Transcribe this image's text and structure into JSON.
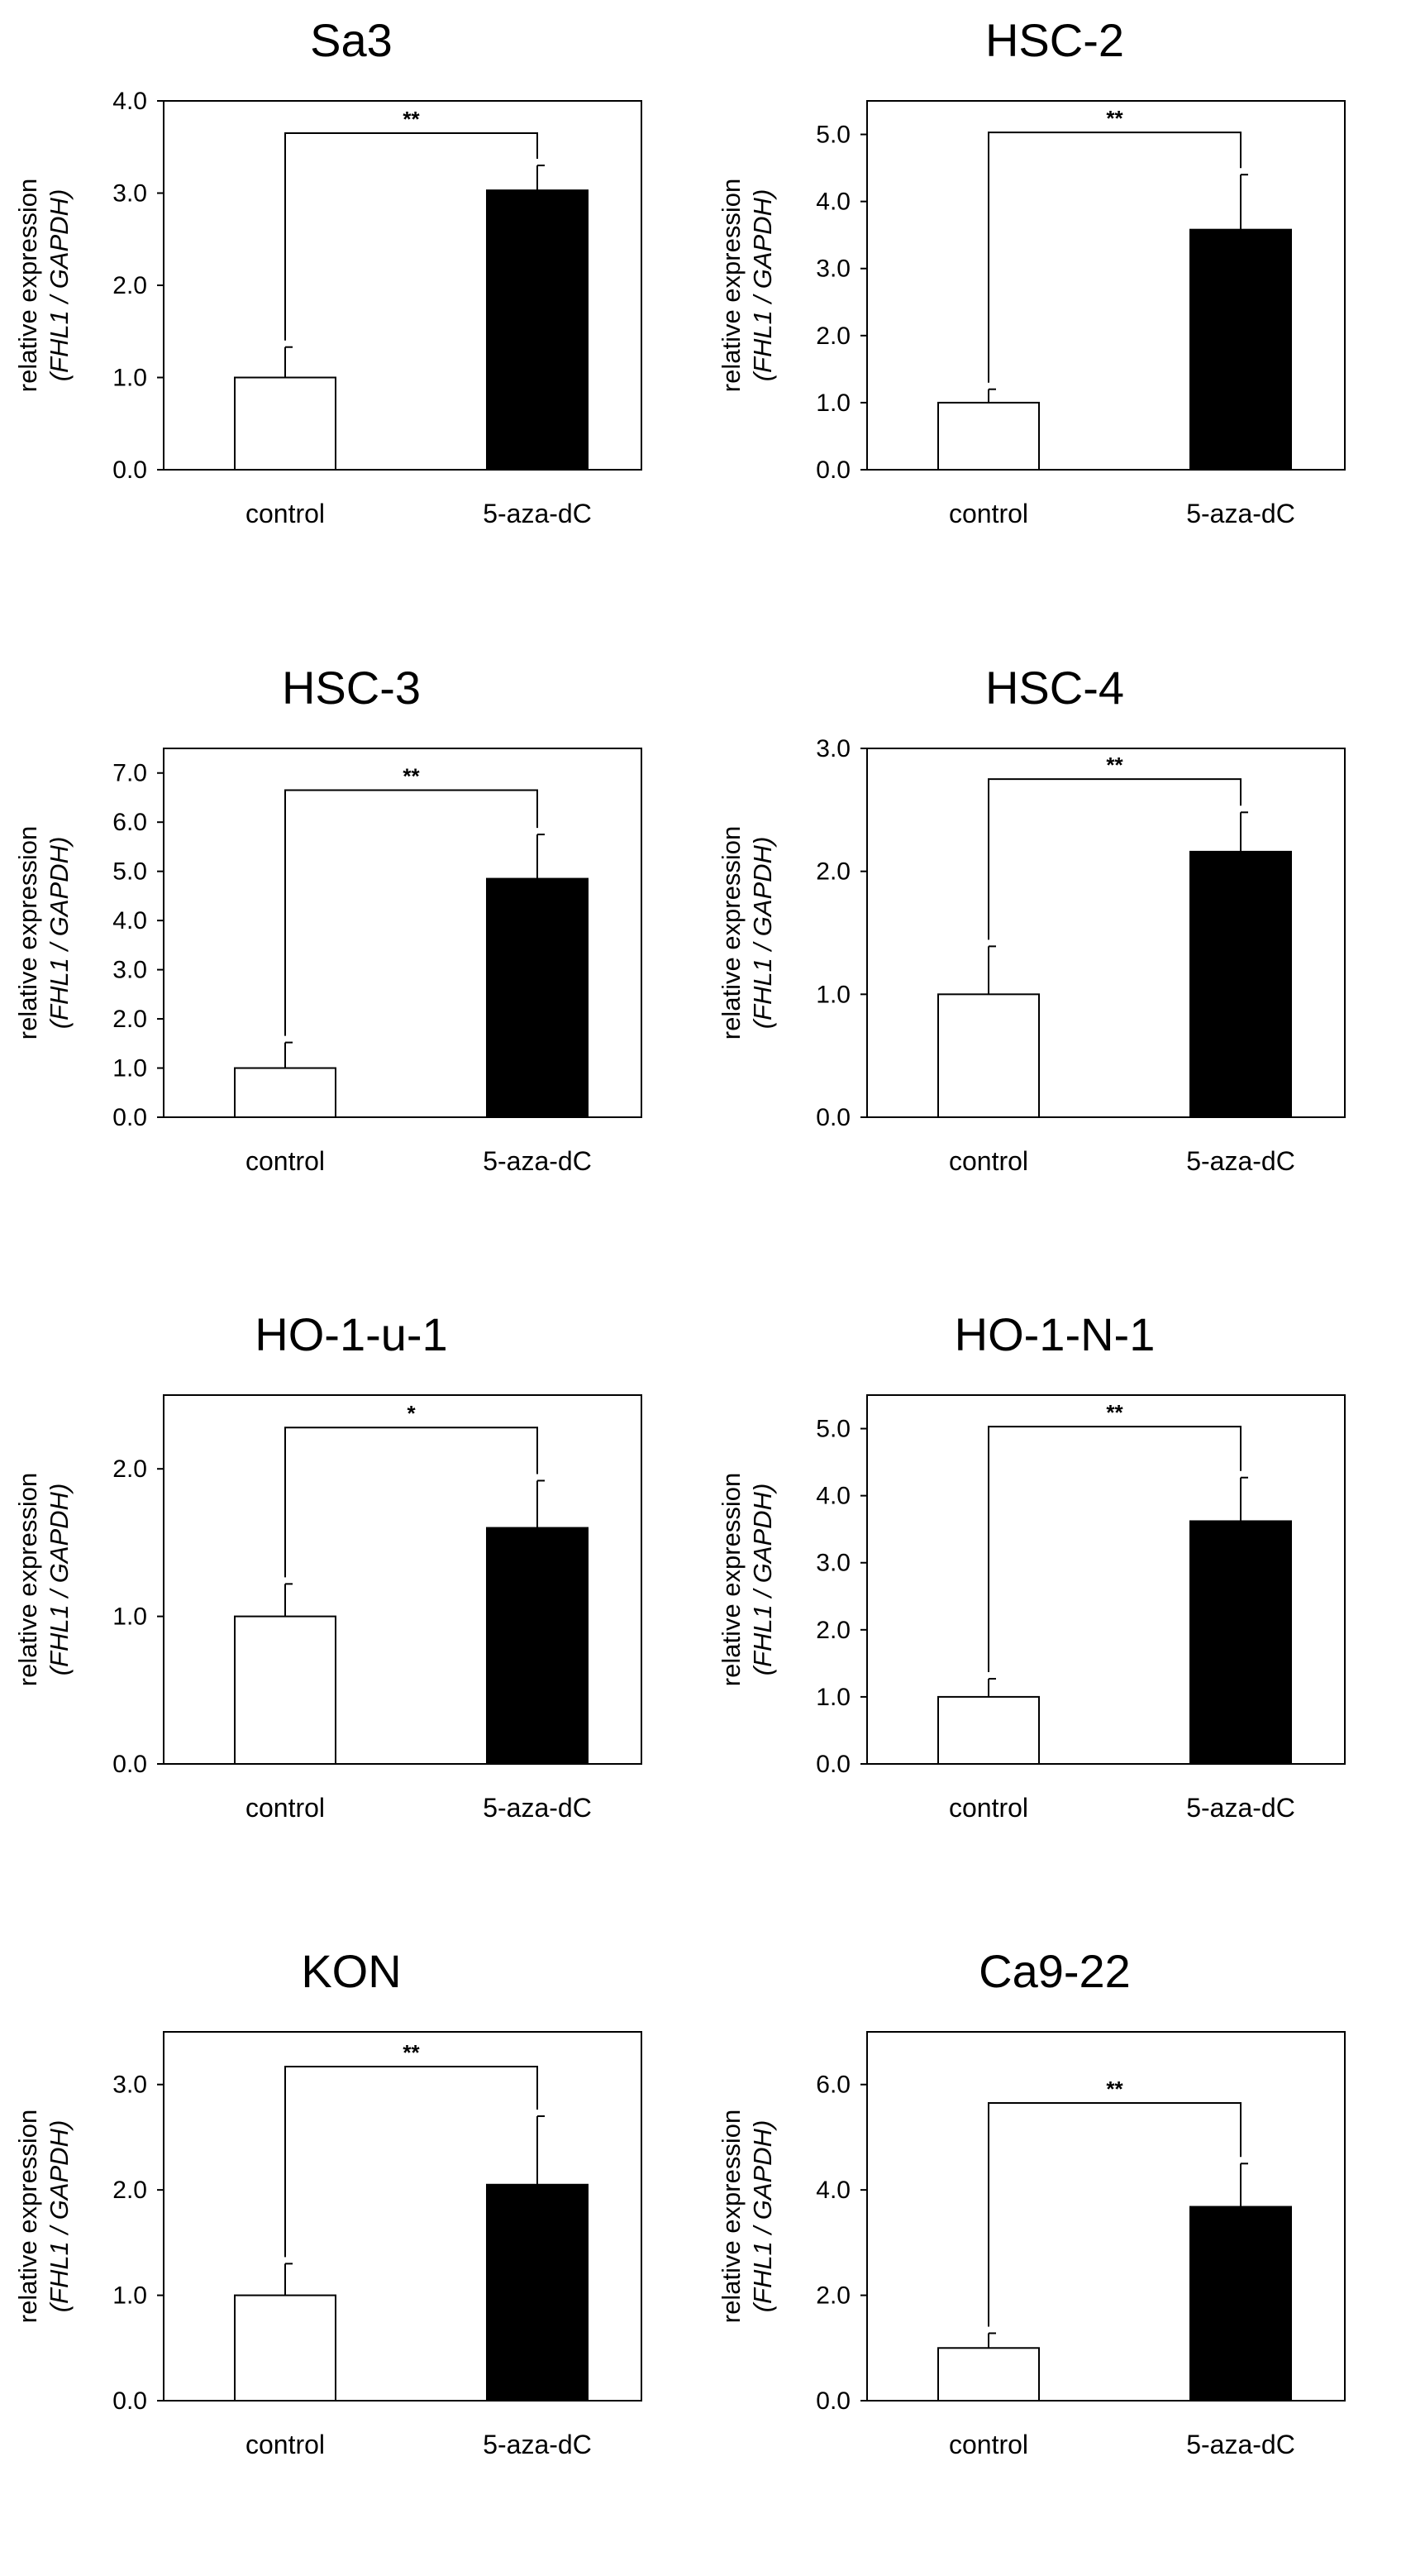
{
  "chart_data": [
    {
      "type": "bar",
      "title": "Sa3",
      "ylabel_line1": "relative expression",
      "ylabel_line2": "(FHL1 / GAPDH)",
      "categories": [
        "control",
        "5-aza-dC"
      ],
      "values": [
        1.0,
        3.03
      ],
      "errors": [
        0.33,
        0.27
      ],
      "ylim": [
        0,
        4.0
      ],
      "yticks": [
        0.0,
        1.0,
        2.0,
        3.0,
        4.0
      ],
      "ytick_labels": [
        "0.0",
        "1.0",
        "2.0",
        "3.0",
        "4.0"
      ],
      "bar_colors": [
        "#ffffff",
        "#000000"
      ],
      "significance": "**",
      "bracket_level": 3.65,
      "grid": false
    },
    {
      "type": "bar",
      "title": "HSC-2",
      "ylabel_line1": "relative expression",
      "ylabel_line2": "(FHL1 / GAPDH)",
      "categories": [
        "control",
        "5-aza-dC"
      ],
      "values": [
        1.0,
        3.58
      ],
      "errors": [
        0.2,
        0.82
      ],
      "ylim": [
        0,
        5.5
      ],
      "yticks": [
        0.0,
        1.0,
        2.0,
        3.0,
        4.0,
        5.0
      ],
      "ytick_labels": [
        "0.0",
        "1.0",
        "2.0",
        "3.0",
        "4.0",
        "5.0"
      ],
      "bar_colors": [
        "#ffffff",
        "#000000"
      ],
      "significance": "**",
      "bracket_level": 5.03,
      "grid": false
    },
    {
      "type": "bar",
      "title": "HSC-3",
      "ylabel_line1": "relative expression",
      "ylabel_line2": "(FHL1 / GAPDH)",
      "categories": [
        "control",
        "5-aza-dC"
      ],
      "values": [
        1.0,
        4.85
      ],
      "errors": [
        0.52,
        0.9
      ],
      "ylim": [
        0,
        7.5
      ],
      "yticks": [
        0.0,
        1.0,
        2.0,
        3.0,
        4.0,
        5.0,
        6.0,
        7.0
      ],
      "ytick_labels": [
        "0.0",
        "1.0",
        "2.0",
        "3.0",
        "4.0",
        "5.0",
        "6.0",
        "7.0"
      ],
      "bar_colors": [
        "#ffffff",
        "#000000"
      ],
      "significance": "**",
      "bracket_level": 6.65,
      "grid": false
    },
    {
      "type": "bar",
      "title": "HSC-4",
      "ylabel_line1": "relative expression",
      "ylabel_line2": "(FHL1 / GAPDH)",
      "categories": [
        "control",
        "5-aza-dC"
      ],
      "values": [
        1.0,
        2.16
      ],
      "errors": [
        0.39,
        0.32
      ],
      "ylim": [
        0,
        3.0
      ],
      "yticks": [
        0.0,
        1.0,
        2.0,
        3.0
      ],
      "ytick_labels": [
        "0.0",
        "1.0",
        "2.0",
        "3.0"
      ],
      "bar_colors": [
        "#ffffff",
        "#000000"
      ],
      "significance": "**",
      "bracket_level": 2.75,
      "grid": false
    },
    {
      "type": "bar",
      "title": "HO-1-u-1",
      "ylabel_line1": "relative expression",
      "ylabel_line2": "(FHL1 / GAPDH)",
      "categories": [
        "control",
        "5-aza-dC"
      ],
      "values": [
        1.0,
        1.6
      ],
      "errors": [
        0.22,
        0.32
      ],
      "ylim": [
        0,
        2.5
      ],
      "yticks": [
        0.0,
        1.0,
        2.0
      ],
      "ytick_labels": [
        "0.0",
        "1.0",
        "2.0"
      ],
      "bar_colors": [
        "#ffffff",
        "#000000"
      ],
      "significance": "*",
      "bracket_level": 2.28,
      "grid": false
    },
    {
      "type": "bar",
      "title": "HO-1-N-1",
      "ylabel_line1": "relative expression",
      "ylabel_line2": "(FHL1 / GAPDH)",
      "categories": [
        "control",
        "5-aza-dC"
      ],
      "values": [
        1.0,
        3.62
      ],
      "errors": [
        0.27,
        0.65
      ],
      "ylim": [
        0,
        5.5
      ],
      "yticks": [
        0.0,
        1.0,
        2.0,
        3.0,
        4.0,
        5.0
      ],
      "ytick_labels": [
        "0.0",
        "1.0",
        "2.0",
        "3.0",
        "4.0",
        "5.0"
      ],
      "bar_colors": [
        "#ffffff",
        "#000000"
      ],
      "significance": "**",
      "bracket_level": 5.03,
      "grid": false
    },
    {
      "type": "bar",
      "title": "KON",
      "ylabel_line1": "relative expression",
      "ylabel_line2": "(FHL1 / GAPDH)",
      "categories": [
        "control",
        "5-aza-dC"
      ],
      "values": [
        1.0,
        2.05
      ],
      "errors": [
        0.3,
        0.65
      ],
      "ylim": [
        0,
        3.5
      ],
      "yticks": [
        0.0,
        1.0,
        2.0,
        3.0
      ],
      "ytick_labels": [
        "0.0",
        "1.0",
        "2.0",
        "3.0"
      ],
      "bar_colors": [
        "#ffffff",
        "#000000"
      ],
      "significance": "**",
      "bracket_level": 3.17,
      "grid": false
    },
    {
      "type": "bar",
      "title": "Ca9-22",
      "ylabel_line1": "relative expression",
      "ylabel_line2": "(FHL1 / GAPDH)",
      "categories": [
        "control",
        "5-aza-dC"
      ],
      "values": [
        1.0,
        3.68
      ],
      "errors": [
        0.28,
        0.82
      ],
      "ylim": [
        0,
        7.0
      ],
      "yticks": [
        0.0,
        2.0,
        4.0,
        6.0
      ],
      "ytick_labels": [
        "0.0",
        "2.0",
        "4.0",
        "6.0"
      ],
      "bar_colors": [
        "#ffffff",
        "#000000"
      ],
      "significance": "**",
      "bracket_level": 5.65,
      "grid": false
    }
  ]
}
